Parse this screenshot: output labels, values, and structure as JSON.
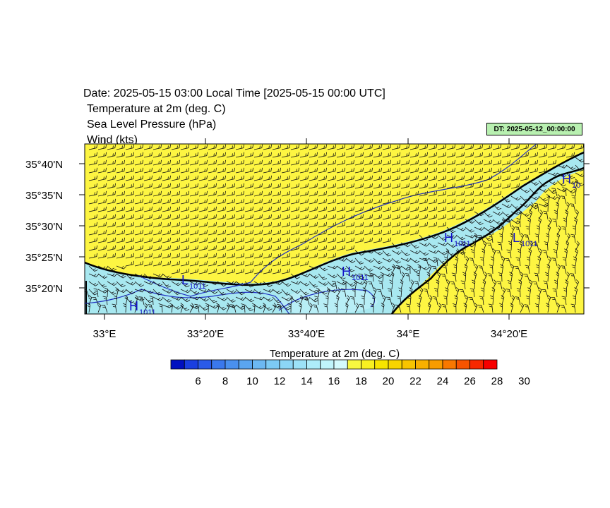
{
  "header": {
    "title": "Date: 2025-05-15  03:00 Local Time [2025-05-15  00:00 UTC]",
    "fields": [
      "Temperature at 2m   (deg. C)",
      "Sea Level Pressure   (hPa)",
      "Wind   (kts)"
    ],
    "dt_badge": "DT: 2025-05-12_00:00:00"
  },
  "map": {
    "lat_labels": [
      "35°40'N",
      "35°35'N",
      "35°30'N",
      "35°25'N",
      "35°20'N"
    ],
    "lon_labels": [
      "33°E",
      "33°20'E",
      "33°40'E",
      "34°E",
      "34°20'E"
    ],
    "pressure_labels": [
      {
        "kind": "H",
        "value": "1011"
      },
      {
        "kind": "L",
        "value": "1011"
      },
      {
        "kind": "H",
        "value": "1011"
      },
      {
        "kind": "H",
        "value": "1011"
      },
      {
        "kind": "L",
        "value": "1011"
      },
      {
        "kind": "H",
        "value": "10"
      }
    ],
    "colors": {
      "land": "#fdf542",
      "sea": "#a8e8f0",
      "coast": "#000000",
      "isobar": "#2030c0"
    }
  },
  "colorbar": {
    "title": "Temperature at 2m  (deg. C)",
    "tick_labels": [
      "6",
      "8",
      "10",
      "12",
      "14",
      "16",
      "18",
      "20",
      "22",
      "24",
      "26",
      "28",
      "30"
    ],
    "colors": [
      "#0010c0",
      "#1a3fe0",
      "#2a5ae8",
      "#3a78ec",
      "#4a90ee",
      "#5aa5f0",
      "#6cb8f2",
      "#7ccaf4",
      "#8cd6f6",
      "#9ce2f8",
      "#aeecfa",
      "#c0f4fc",
      "#d4fafe",
      "#f8f840",
      "#f8f020",
      "#f8e400",
      "#f8d400",
      "#f8c400",
      "#f8b000",
      "#f89c00",
      "#f87800",
      "#f85400",
      "#f82800",
      "#f80000"
    ]
  }
}
